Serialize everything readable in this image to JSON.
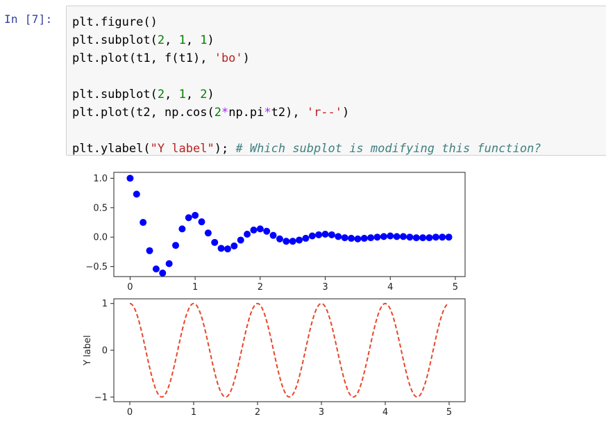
{
  "cell": {
    "prompt": "In [7]:",
    "code_lines": [
      [
        {
          "t": "plt.figure()",
          "c": "default"
        }
      ],
      [
        {
          "t": "plt.subplot(",
          "c": "default"
        },
        {
          "t": "2",
          "c": "num"
        },
        {
          "t": ", ",
          "c": "default"
        },
        {
          "t": "1",
          "c": "num"
        },
        {
          "t": ", ",
          "c": "default"
        },
        {
          "t": "1",
          "c": "num"
        },
        {
          "t": ")",
          "c": "default"
        }
      ],
      [
        {
          "t": "plt.plot(t1, f(t1), ",
          "c": "default"
        },
        {
          "t": "'bo'",
          "c": "str"
        },
        {
          "t": ")",
          "c": "default"
        }
      ],
      [
        {
          "t": "",
          "c": "default"
        }
      ],
      [
        {
          "t": "plt.subplot(",
          "c": "default"
        },
        {
          "t": "2",
          "c": "num"
        },
        {
          "t": ", ",
          "c": "default"
        },
        {
          "t": "1",
          "c": "num"
        },
        {
          "t": ", ",
          "c": "default"
        },
        {
          "t": "2",
          "c": "num"
        },
        {
          "t": ")",
          "c": "default"
        }
      ],
      [
        {
          "t": "plt.plot(t2, np.cos(",
          "c": "default"
        },
        {
          "t": "2",
          "c": "num"
        },
        {
          "t": "*",
          "c": "op"
        },
        {
          "t": "np.pi",
          "c": "default"
        },
        {
          "t": "*",
          "c": "op"
        },
        {
          "t": "t2), ",
          "c": "default"
        },
        {
          "t": "'r--'",
          "c": "str"
        },
        {
          "t": ")",
          "c": "default"
        }
      ],
      [
        {
          "t": "",
          "c": "default"
        }
      ],
      [
        {
          "t": "plt.ylabel(",
          "c": "default"
        },
        {
          "t": "\"Y label\"",
          "c": "str"
        },
        {
          "t": "); ",
          "c": "default"
        },
        {
          "t": "# Which subplot is modifying this function?",
          "c": "comment"
        }
      ]
    ]
  },
  "chart_data": [
    {
      "type": "scatter",
      "marker_color": "#0000ff",
      "x": [
        0.0,
        0.1,
        0.2,
        0.3,
        0.4,
        0.5,
        0.6,
        0.7,
        0.8,
        0.9,
        1.0,
        1.1,
        1.2,
        1.3,
        1.4,
        1.5,
        1.6,
        1.7,
        1.8,
        1.9,
        2.0,
        2.1,
        2.2,
        2.3,
        2.4,
        2.5,
        2.6,
        2.7,
        2.8,
        2.9,
        3.0,
        3.1,
        3.2,
        3.3,
        3.4,
        3.5,
        3.6,
        3.7,
        3.8,
        3.9,
        4.0,
        4.1,
        4.2,
        4.3,
        4.4,
        4.5,
        4.6,
        4.7,
        4.8,
        4.9
      ],
      "y": [
        1.0,
        0.73,
        0.25,
        -0.23,
        -0.54,
        -0.61,
        -0.45,
        -0.14,
        0.14,
        0.33,
        0.37,
        0.26,
        0.07,
        -0.09,
        -0.19,
        -0.2,
        -0.15,
        -0.05,
        0.05,
        0.12,
        0.14,
        0.1,
        0.03,
        -0.03,
        -0.07,
        -0.07,
        -0.05,
        -0.02,
        0.02,
        0.04,
        0.05,
        0.04,
        0.01,
        -0.01,
        -0.02,
        -0.03,
        -0.02,
        -0.01,
        0.0,
        0.01,
        0.02,
        0.01,
        0.01,
        0.0,
        -0.01,
        -0.01,
        -0.01,
        0.0,
        0.0,
        0.0
      ],
      "xlim": [
        -0.25,
        5.15
      ],
      "ylim": [
        -0.67,
        1.1
      ],
      "xticks": [
        0,
        1,
        2,
        3,
        4,
        5
      ],
      "xtick_labels": [
        "0",
        "1",
        "2",
        "3",
        "4",
        "5"
      ],
      "yticks": [
        1.0,
        0.5,
        0.0,
        -0.5
      ],
      "ytick_labels": [
        "1.0",
        "0.5",
        "0.0",
        "−0.5"
      ],
      "xlabel": "",
      "ylabel": ""
    },
    {
      "type": "line",
      "line_color": "#e8462a",
      "line_style": "dashed",
      "function": "cos(2*pi*t)",
      "x_range": [
        0.0,
        5.0
      ],
      "xlim": [
        -0.25,
        5.25
      ],
      "ylim": [
        -1.1,
        1.1
      ],
      "xticks": [
        0,
        1,
        2,
        3,
        4,
        5
      ],
      "xtick_labels": [
        "0",
        "1",
        "2",
        "3",
        "4",
        "5"
      ],
      "yticks": [
        1,
        0,
        -1
      ],
      "ytick_labels": [
        "1",
        "0",
        "−1"
      ],
      "xlabel": "",
      "ylabel": "Y label"
    }
  ]
}
